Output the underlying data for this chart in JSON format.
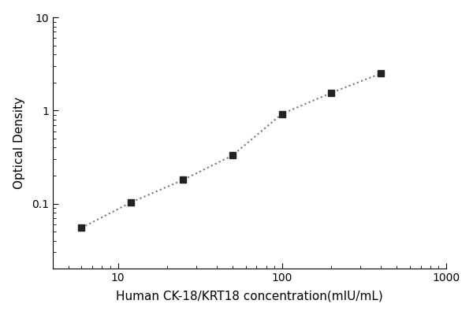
{
  "x": [
    6,
    12,
    25,
    50,
    100,
    200,
    400
  ],
  "y": [
    0.055,
    0.103,
    0.18,
    0.33,
    0.92,
    1.55,
    2.5
  ],
  "xlabel": "Human CK-18/KRT18 concentration(mIU/mL)",
  "ylabel": "Optical Density",
  "xlim": [
    4,
    1000
  ],
  "ylim": [
    0.02,
    10
  ],
  "line_color": "#777777",
  "marker_color": "#222222",
  "marker": "s",
  "marker_size": 6,
  "line_style": ":",
  "line_width": 1.5,
  "background_color": "#ffffff",
  "xlabel_fontsize": 11,
  "ylabel_fontsize": 11,
  "tick_fontsize": 10,
  "ytick_labels": [
    "0.1",
    "1",
    "10"
  ],
  "ytick_values": [
    0.1,
    1.0,
    10.0
  ],
  "xtick_labels": [
    "10",
    "100",
    "1000"
  ],
  "xtick_values": [
    10,
    100,
    1000
  ]
}
